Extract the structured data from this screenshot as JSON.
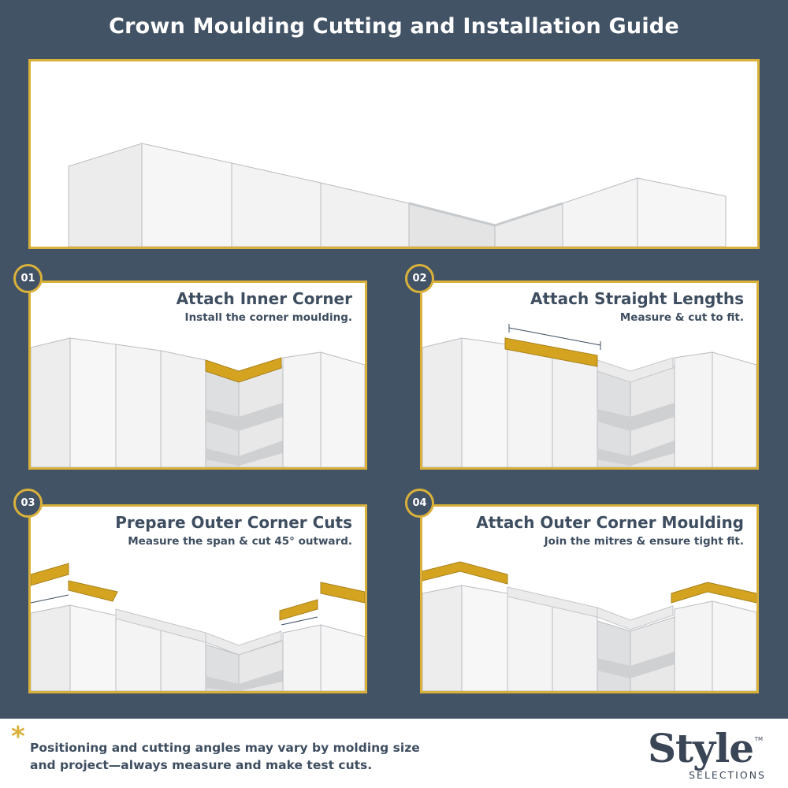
{
  "title": "Crown Moulding Cutting and Installation Guide",
  "steps": [
    {
      "number": "01",
      "title": "Attach Inner Corner",
      "subtitle": "Install the corner moulding."
    },
    {
      "number": "02",
      "title": "Attach Straight Lengths",
      "subtitle": "Measure & cut to fit."
    },
    {
      "number": "03",
      "title": "Prepare Outer Corner Cuts",
      "subtitle": "Measure the span & cut 45° outward."
    },
    {
      "number": "04",
      "title": "Attach Outer Corner Moulding",
      "subtitle": "Join the mitres & ensure tight fit."
    }
  ],
  "footer": {
    "asterisk": "*",
    "note": "Positioning and cutting angles may vary by molding size and project—always measure and make test cuts."
  },
  "brand": {
    "name": "Style",
    "trademark": "TM",
    "subtitle": "SELECTIONS"
  },
  "colors": {
    "background": "#435366",
    "accent": "#d9b13a",
    "moulding": "#d4a421",
    "text": "#3e4e60"
  }
}
